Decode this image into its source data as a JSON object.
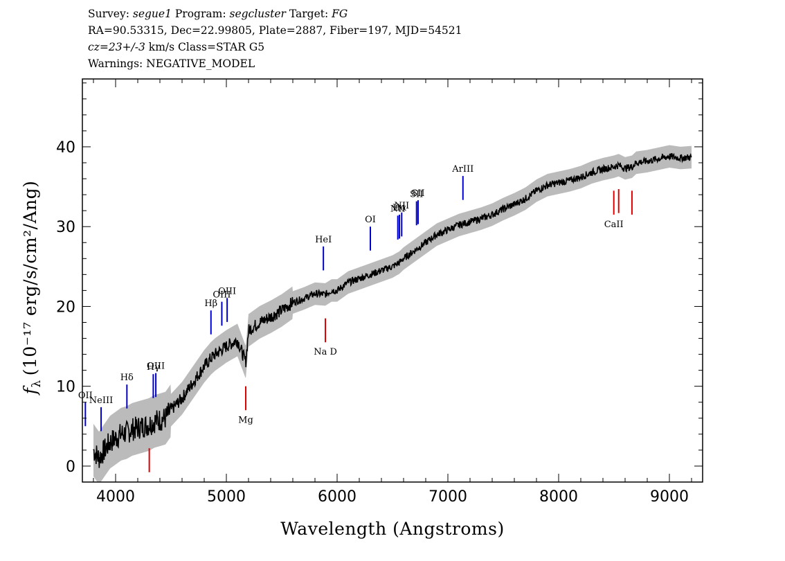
{
  "header": {
    "survey_label": "Survey:",
    "survey": "segue1",
    "program_label": "Program:",
    "program": "segcluster",
    "target_label": "Target:",
    "target": "FG",
    "line2": "RA=90.53315, Dec=22.99805, Plate=2887, Fiber=197, MJD=54521",
    "cz": "cz=23+/-3",
    "cz_rest": " km/s Class=STAR G5",
    "warnings": "Warnings: NEGATIVE_MODEL"
  },
  "chart_data": {
    "type": "line",
    "xlabel": "Wavelength (Angstroms)",
    "ylabel": "(10⁻¹⁷ erg/s/cm²/Ang)",
    "ylabel_symbol": "f",
    "ylabel_subscript": "λ",
    "xlim": [
      3700,
      9300
    ],
    "ylim": [
      -2,
      48.5
    ],
    "xticks": [
      4000,
      5000,
      6000,
      7000,
      8000,
      9000
    ],
    "yticks": [
      0,
      10,
      20,
      30,
      40
    ],
    "x_minor_step": 200,
    "y_minor_step": 2,
    "colors": {
      "flux": "#000000",
      "noise": "#bbbbbb",
      "emission": "#0000cc",
      "absorption": "#dd0000"
    },
    "flux_spectrum": {
      "x": [
        3800,
        3850,
        3900,
        3950,
        4000,
        4050,
        4100,
        4150,
        4200,
        4250,
        4300,
        4350,
        4400,
        4450,
        4500,
        4600,
        4700,
        4800,
        4861,
        4900,
        5000,
        5100,
        5175,
        5200,
        5300,
        5400,
        5500,
        5600,
        5700,
        5800,
        5893,
        5950,
        6000,
        6100,
        6200,
        6300,
        6400,
        6500,
        6563,
        6600,
        6700,
        6800,
        6900,
        7000,
        7100,
        7200,
        7300,
        7400,
        7500,
        7600,
        7700,
        7800,
        7900,
        8000,
        8100,
        8200,
        8300,
        8400,
        8498,
        8542,
        8600,
        8662,
        8700,
        8800,
        8900,
        9000,
        9100,
        9200
      ],
      "y": [
        2,
        1,
        2,
        3,
        3.5,
        4,
        4.2,
        4.6,
        4.8,
        5,
        5.2,
        5.6,
        5.8,
        6,
        7,
        8.5,
        10.5,
        12.5,
        13.5,
        14,
        15,
        15.8,
        13,
        17,
        18,
        18.7,
        19.5,
        20.5,
        21,
        21.6,
        21.5,
        22,
        22,
        23,
        23.5,
        24,
        24.5,
        25,
        25.5,
        26,
        27,
        28,
        29,
        29.6,
        30.2,
        30.6,
        31,
        31.5,
        32.2,
        32.8,
        33.5,
        34.5,
        35.2,
        35.5,
        35.8,
        36.2,
        36.8,
        37.2,
        37.5,
        37.7,
        37.3,
        37.5,
        38,
        38.2,
        38.5,
        38.8,
        38.6,
        38.7
      ]
    },
    "emission_lines": [
      {
        "label": "OII",
        "wavelength": 3727
      },
      {
        "label": "NeIII",
        "wavelength": 3869
      },
      {
        "label": "Hδ",
        "wavelength": 4102
      },
      {
        "label": "Hγ",
        "wavelength": 4340
      },
      {
        "label": "OIII",
        "wavelength": 4363
      },
      {
        "label": "Hβ",
        "wavelength": 4861
      },
      {
        "label": "OIII",
        "wavelength": 4959
      },
      {
        "label": "OIII",
        "wavelength": 5007
      },
      {
        "label": "HeI",
        "wavelength": 5876
      },
      {
        "label": "OI",
        "wavelength": 6300
      },
      {
        "label": "NII",
        "wavelength": 6548
      },
      {
        "label": "Hα",
        "wavelength": 6563
      },
      {
        "label": "NII",
        "wavelength": 6583
      },
      {
        "label": "SII",
        "wavelength": 6717
      },
      {
        "label": "SII",
        "wavelength": 6731
      },
      {
        "label": "ArIII",
        "wavelength": 7136
      }
    ],
    "absorption_lines": [
      {
        "label": "",
        "wavelength": 4304
      },
      {
        "label": "Mg",
        "wavelength": 5175
      },
      {
        "label": "Na D",
        "wavelength": 5894
      },
      {
        "label": "CaII",
        "wavelength": 8498
      },
      {
        "label": "",
        "wavelength": 8542
      },
      {
        "label": "",
        "wavelength": 8662
      }
    ]
  }
}
